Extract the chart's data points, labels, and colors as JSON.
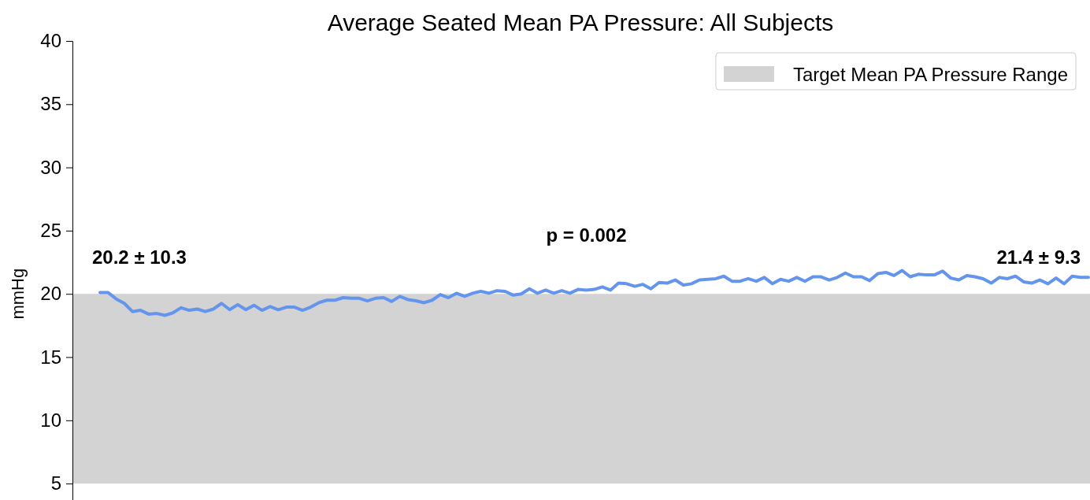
{
  "chart_data": {
    "type": "line",
    "title": "Average Seated Mean PA Pressure: All Subjects",
    "ylabel": "mmHg",
    "categories": [
      null,
      null,
      null,
      null,
      null,
      null,
      null,
      null,
      null,
      null,
      null,
      null,
      null,
      null,
      null,
      null,
      null,
      null,
      null,
      null,
      null,
      null,
      null,
      null,
      null,
      null,
      null,
      null,
      null,
      null,
      null,
      null,
      null,
      null,
      null,
      null,
      null,
      null,
      null,
      null,
      null,
      null,
      null,
      null,
      null,
      null,
      null,
      null,
      null,
      null,
      null,
      null,
      null,
      null,
      null,
      null,
      null,
      null,
      null,
      null,
      null,
      null,
      null,
      null,
      null,
      null,
      null,
      null,
      null,
      null,
      null,
      null,
      null,
      null,
      null,
      null,
      null,
      null,
      null,
      null,
      null,
      null,
      null,
      null,
      null,
      null,
      null,
      null,
      null,
      null,
      null,
      null,
      null,
      null,
      null,
      null,
      null,
      null,
      null,
      null,
      null,
      null,
      null,
      null,
      null,
      null,
      null,
      null,
      null,
      null,
      null,
      null,
      null,
      null,
      null,
      null,
      null,
      null,
      null,
      null,
      null,
      null,
      null
    ],
    "series": [
      {
        "color": "#6495ed",
        "values": [
          20.1,
          20.1,
          19.6,
          19.25,
          18.6,
          18.7,
          18.4,
          18.45,
          18.3,
          18.5,
          18.9,
          18.7,
          18.8,
          18.6,
          18.8,
          19.25,
          18.75,
          19.15,
          18.75,
          19.1,
          18.7,
          19.0,
          18.75,
          18.95,
          18.95,
          18.7,
          18.95,
          19.3,
          19.5,
          19.5,
          19.7,
          19.65,
          19.65,
          19.45,
          19.65,
          19.7,
          19.4,
          19.8,
          19.55,
          19.45,
          19.3,
          19.5,
          19.95,
          19.7,
          20.05,
          19.8,
          20.05,
          20.2,
          20.05,
          20.25,
          20.2,
          19.9,
          20.0,
          20.4,
          20.05,
          20.3,
          20.05,
          20.25,
          20.05,
          20.35,
          20.3,
          20.35,
          20.55,
          20.3,
          20.85,
          20.8,
          20.6,
          20.75,
          20.4,
          20.9,
          20.85,
          21.1,
          20.7,
          20.8,
          21.1,
          21.15,
          21.2,
          21.4,
          21.0,
          21.0,
          21.2,
          21.0,
          21.3,
          20.8,
          21.15,
          21.0,
          21.3,
          21.0,
          21.35,
          21.35,
          21.1,
          21.3,
          21.65,
          21.35,
          21.35,
          21.05,
          21.6,
          21.7,
          21.45,
          21.85,
          21.35,
          21.55,
          21.5,
          21.5,
          21.8,
          21.25,
          21.1,
          21.45,
          21.35,
          21.2,
          20.85,
          21.3,
          21.2,
          21.4,
          20.95,
          20.85,
          21.1,
          20.8,
          21.25,
          20.8,
          21.4,
          21.3,
          21.3
        ]
      }
    ],
    "ylim": [
      3.7,
      40
    ],
    "yticks": [
      5,
      10,
      15,
      20,
      25,
      30,
      35,
      40
    ],
    "tick_labels": "y",
    "grid": false,
    "legend": "top right",
    "marker": "none",
    "line_style": "solid",
    "bands": [
      {
        "axis": "y",
        "from": 5,
        "to": 20,
        "label": "Target Mean PA Pressure Range",
        "color": "#d3d3d3"
      }
    ],
    "annotations": [
      "20.2 ± 10.3",
      "p = 0.002",
      "21.4 ± 9.3"
    ]
  }
}
